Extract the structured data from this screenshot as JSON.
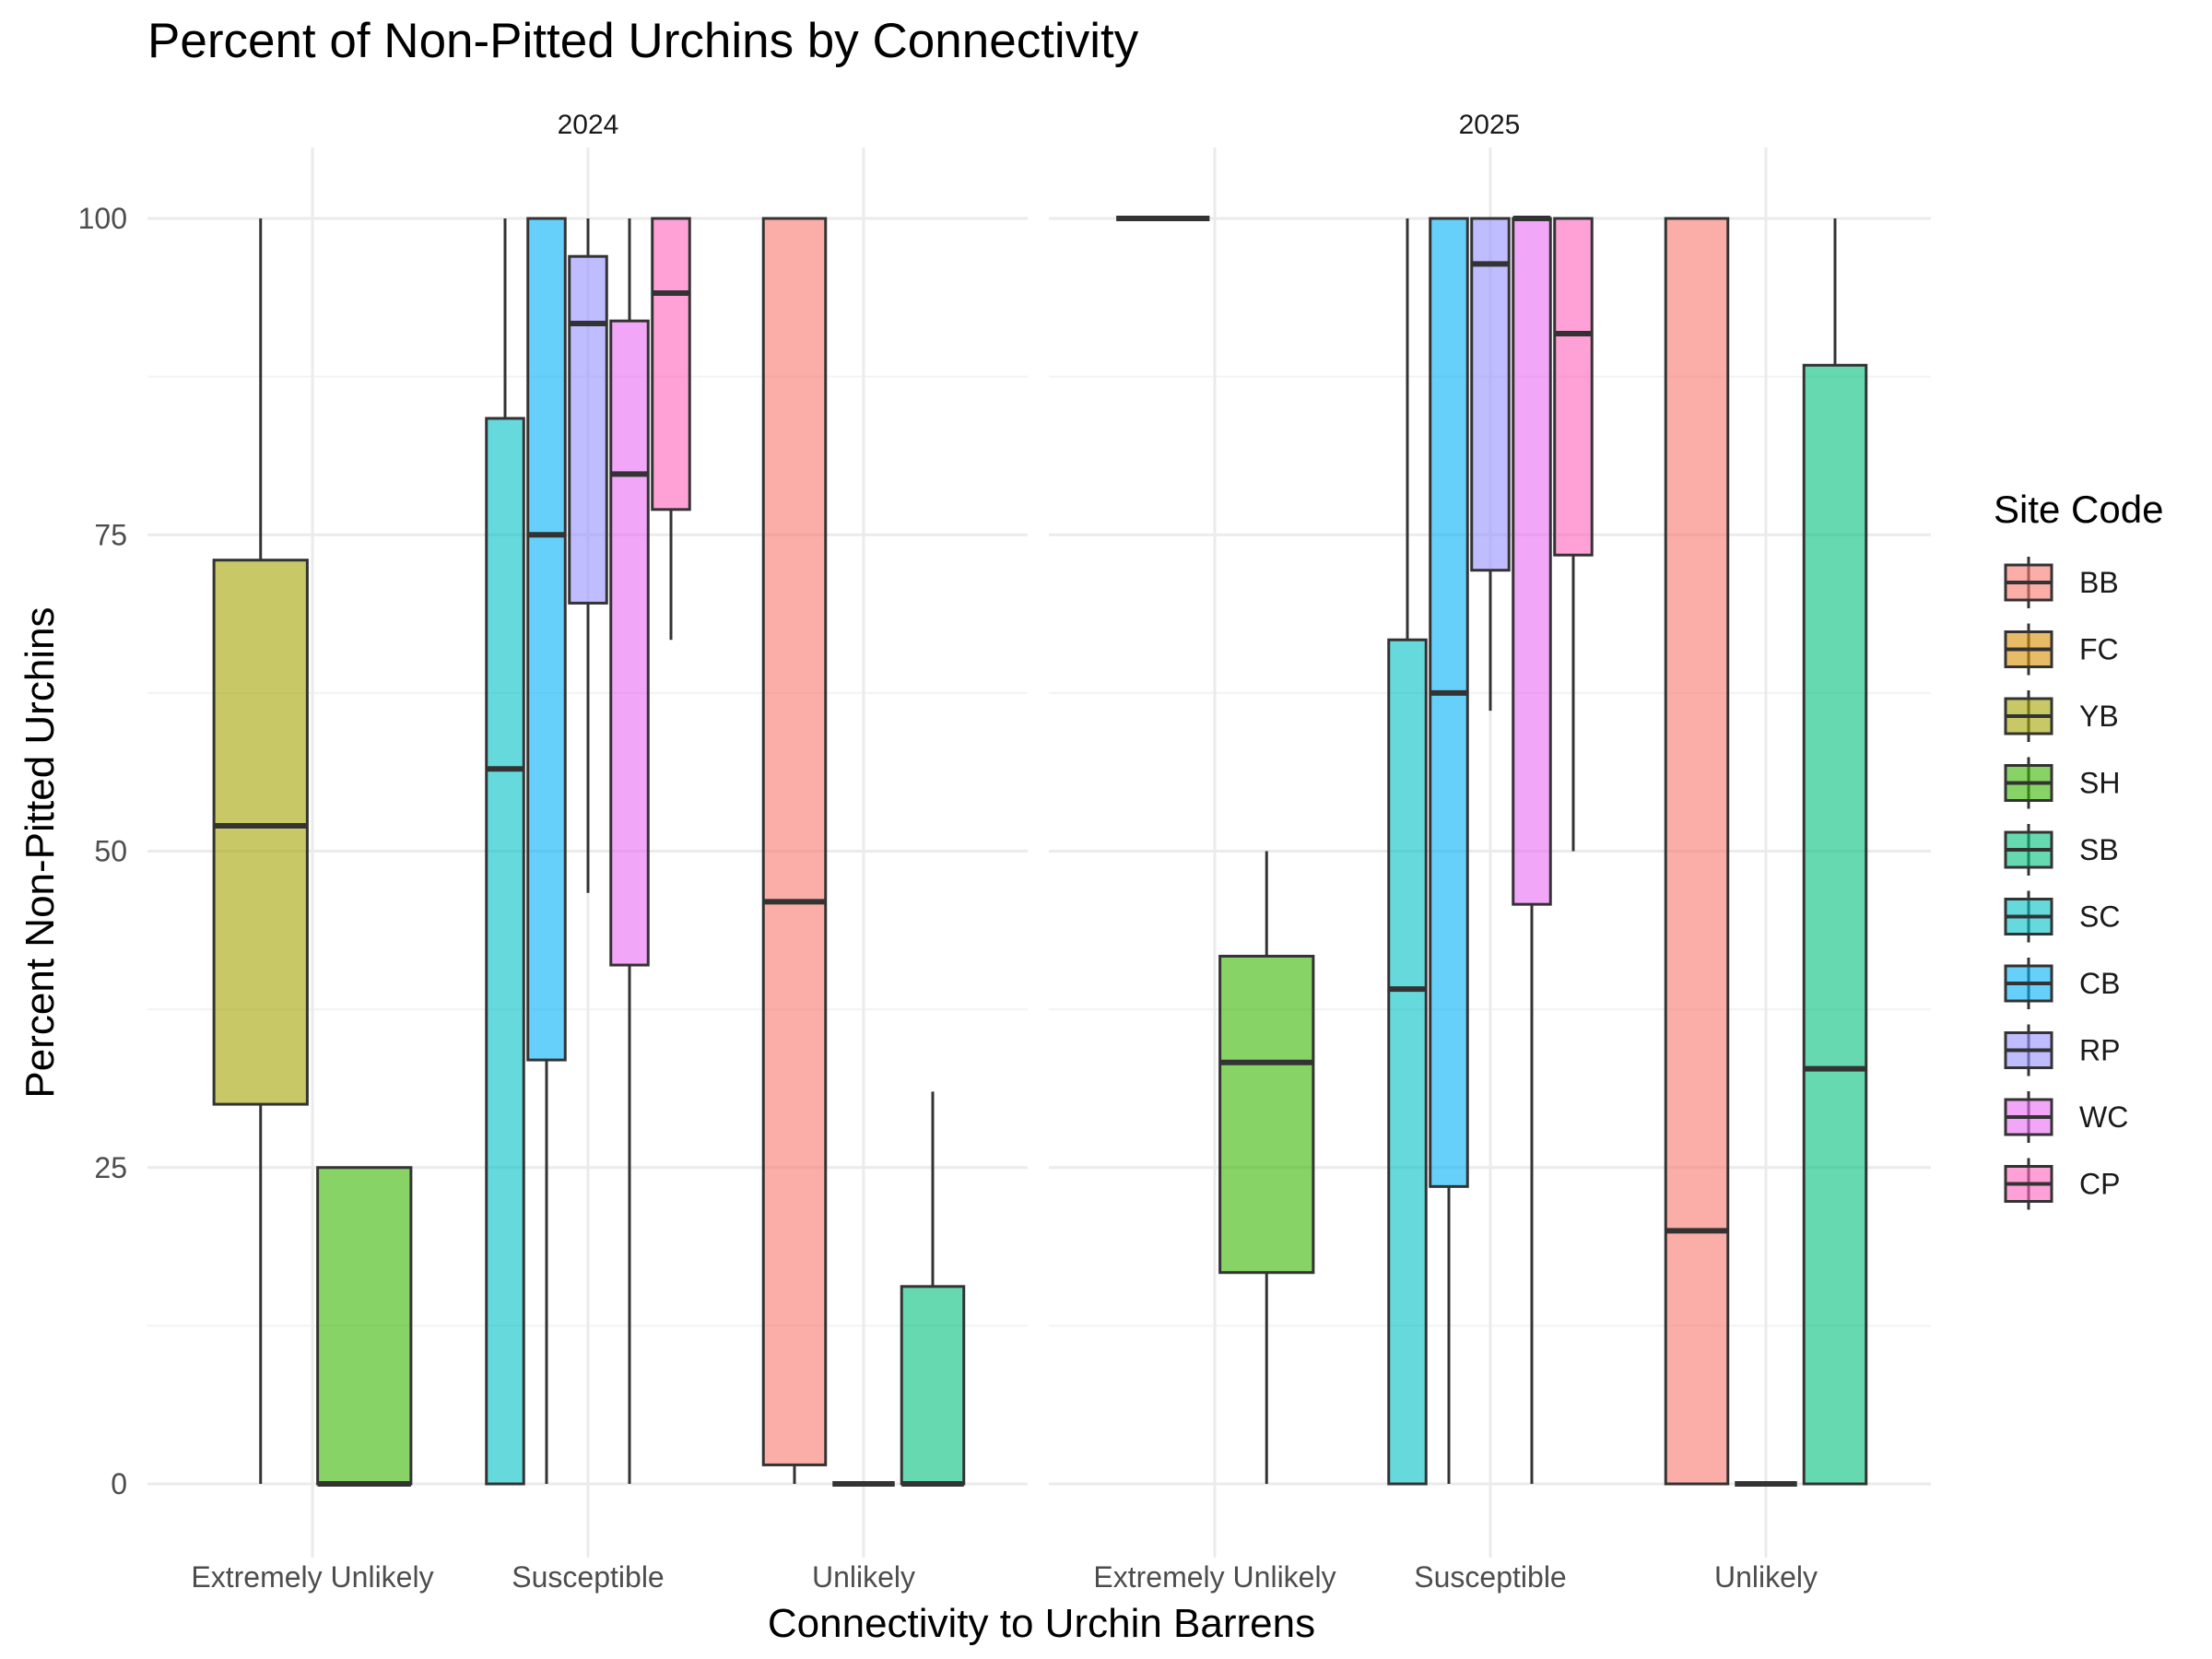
{
  "chart_data": {
    "type": "boxplot",
    "title": "Percent of Non-Pitted Urchins by Connectivity",
    "xlabel": "Connectivity to Urchin Barrens",
    "ylabel": "Percent Non-Pitted Urchins",
    "ylim": [
      -5,
      105
    ],
    "y_ticks": [
      0,
      25,
      50,
      75,
      100
    ],
    "categories": [
      "Extremely Unlikely",
      "Susceptible",
      "Unlikely"
    ],
    "panels": [
      "2024",
      "2025"
    ],
    "grid": true,
    "legend": {
      "title": "Site Code",
      "position": "right",
      "entries": [
        {
          "code": "BB",
          "color": "#F8766D"
        },
        {
          "code": "FC",
          "color": "#D89000"
        },
        {
          "code": "YB",
          "color": "#A3A500"
        },
        {
          "code": "SH",
          "color": "#39B600"
        },
        {
          "code": "SB",
          "color": "#00BF7D"
        },
        {
          "code": "SC",
          "color": "#00BFC4"
        },
        {
          "code": "CB",
          "color": "#00B0F6"
        },
        {
          "code": "RP",
          "color": "#9590FF"
        },
        {
          "code": "WC",
          "color": "#E76BF3"
        },
        {
          "code": "CP",
          "color": "#FF62BC"
        }
      ]
    },
    "boxes": [
      {
        "panel": "2024",
        "category": "Extremely Unlikely",
        "site": "YB",
        "min": 0,
        "q1": 30,
        "median": 52,
        "q3": 73,
        "max": 100,
        "slot": 0,
        "nslots": 2
      },
      {
        "panel": "2024",
        "category": "Extremely Unlikely",
        "site": "SH",
        "min": 0,
        "q1": 0,
        "median": 0,
        "q3": 25,
        "max": 25,
        "slot": 1,
        "nslots": 2
      },
      {
        "panel": "2024",
        "category": "Susceptible",
        "site": "SC",
        "min": 0,
        "q1": 0,
        "median": 56.5,
        "q3": 84.2,
        "max": 100,
        "slot": 0,
        "nslots": 5
      },
      {
        "panel": "2024",
        "category": "Susceptible",
        "site": "CB",
        "min": 0,
        "q1": 33.5,
        "median": 75,
        "q3": 100,
        "max": 100,
        "slot": 1,
        "nslots": 5
      },
      {
        "panel": "2024",
        "category": "Susceptible",
        "site": "RP",
        "min": 46.7,
        "q1": 69.6,
        "median": 91.7,
        "q3": 97,
        "max": 100,
        "slot": 2,
        "nslots": 5
      },
      {
        "panel": "2024",
        "category": "Susceptible",
        "site": "WC",
        "min": 0,
        "q1": 41,
        "median": 79.8,
        "q3": 91.9,
        "max": 100,
        "slot": 3,
        "nslots": 5
      },
      {
        "panel": "2024",
        "category": "Susceptible",
        "site": "CP",
        "min": 66.7,
        "q1": 77,
        "median": 94.1,
        "q3": 100,
        "max": 100,
        "slot": 4,
        "nslots": 5
      },
      {
        "panel": "2024",
        "category": "Unlikely",
        "site": "BB",
        "min": 0,
        "q1": 1.5,
        "median": 46,
        "q3": 100,
        "max": 100,
        "slot": 0,
        "nslots": 3
      },
      {
        "panel": "2024",
        "category": "Unlikely",
        "site": "FC",
        "min": 0,
        "q1": 0,
        "median": 0,
        "q3": 0,
        "max": 0,
        "slot": 1,
        "nslots": 3
      },
      {
        "panel": "2024",
        "category": "Unlikely",
        "site": "SB",
        "min": 0,
        "q1": 0,
        "median": 0,
        "q3": 15.6,
        "max": 31,
        "slot": 2,
        "nslots": 3
      },
      {
        "panel": "2025",
        "category": "Extremely Unlikely",
        "site": "YB",
        "min": 100,
        "q1": 100,
        "median": 100,
        "q3": 100,
        "max": 100,
        "slot": 0,
        "nslots": 2
      },
      {
        "panel": "2025",
        "category": "Extremely Unlikely",
        "site": "SH",
        "min": 0,
        "q1": 16.7,
        "median": 33.3,
        "q3": 41.7,
        "max": 50,
        "slot": 1,
        "nslots": 2
      },
      {
        "panel": "2025",
        "category": "Susceptible",
        "site": "SC",
        "min": 0,
        "q1": 0,
        "median": 39.1,
        "q3": 66.7,
        "max": 100,
        "slot": 0,
        "nslots": 5
      },
      {
        "panel": "2025",
        "category": "Susceptible",
        "site": "CB",
        "min": 0,
        "q1": 23.5,
        "median": 62.5,
        "q3": 100,
        "max": 100,
        "slot": 1,
        "nslots": 5
      },
      {
        "panel": "2025",
        "category": "Susceptible",
        "site": "RP",
        "min": 61.1,
        "q1": 72.2,
        "median": 96.4,
        "q3": 100,
        "max": 100,
        "slot": 2,
        "nslots": 5
      },
      {
        "panel": "2025",
        "category": "Susceptible",
        "site": "WC",
        "min": 0,
        "q1": 45.8,
        "median": 100,
        "q3": 100,
        "max": 100,
        "slot": 3,
        "nslots": 5
      },
      {
        "panel": "2025",
        "category": "Susceptible",
        "site": "CP",
        "min": 50,
        "q1": 73.4,
        "median": 90.9,
        "q3": 100,
        "max": 100,
        "slot": 4,
        "nslots": 5
      },
      {
        "panel": "2025",
        "category": "Unlikely",
        "site": "BB",
        "min": 0,
        "q1": 0,
        "median": 20,
        "q3": 100,
        "max": 100,
        "slot": 0,
        "nslots": 3
      },
      {
        "panel": "2025",
        "category": "Unlikely",
        "site": "FC",
        "min": 0,
        "q1": 0,
        "median": 0,
        "q3": 0,
        "max": 0,
        "slot": 1,
        "nslots": 3
      },
      {
        "panel": "2025",
        "category": "Unlikely",
        "site": "SB",
        "min": 0,
        "q1": 0,
        "median": 32.8,
        "q3": 88.4,
        "max": 100,
        "slot": 2,
        "nslots": 3
      }
    ]
  }
}
